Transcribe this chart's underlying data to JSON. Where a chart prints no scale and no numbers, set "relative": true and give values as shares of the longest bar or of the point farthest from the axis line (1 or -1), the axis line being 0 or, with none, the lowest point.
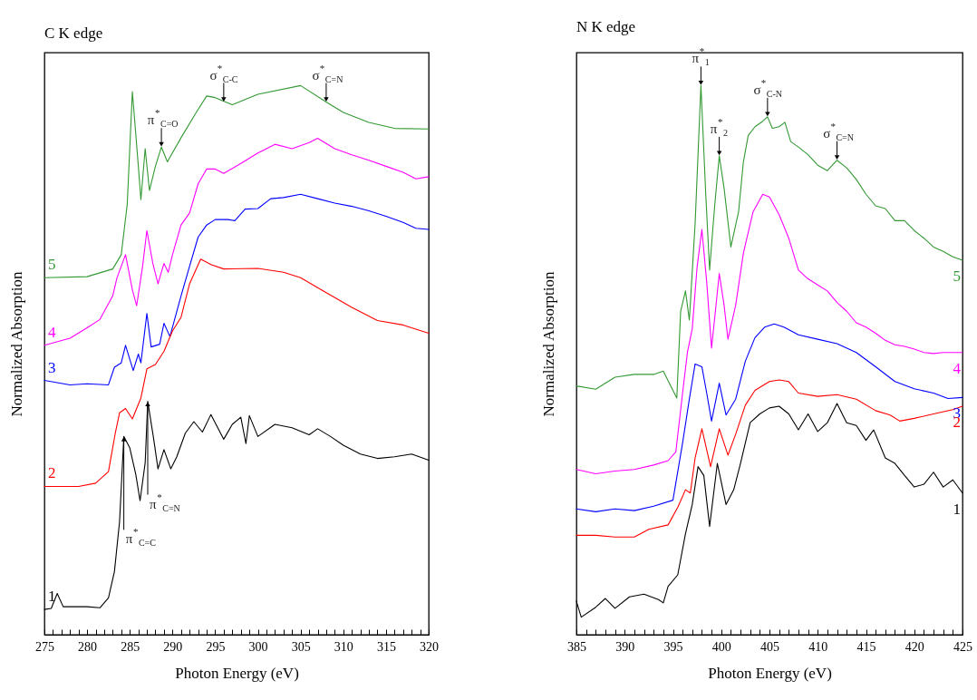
{
  "chart_data": [
    {
      "type": "line",
      "title": "C K edge",
      "xlabel": "Photon Energy (eV)",
      "ylabel": "Normalized Absorption",
      "relative": true,
      "xlim": [
        275,
        320
      ],
      "xticks": [
        275,
        {
          "value": 276,
          "label": null
        },
        {
          "value": 277,
          "label": null
        },
        {
          "value": 278,
          "label": null
        },
        {
          "value": 279,
          "label": null
        },
        280,
        {
          "value": 281,
          "label": null
        },
        {
          "value": 282,
          "label": null
        },
        {
          "value": 283,
          "label": null
        },
        {
          "value": 284,
          "label": null
        },
        285,
        {
          "value": 286,
          "label": null
        },
        {
          "value": 287,
          "label": null
        },
        {
          "value": 288,
          "label": null
        },
        {
          "value": 289,
          "label": null
        },
        290,
        {
          "value": 291,
          "label": null
        },
        {
          "value": 292,
          "label": null
        },
        {
          "value": 293,
          "label": null
        },
        {
          "value": 294,
          "label": null
        },
        295,
        {
          "value": 296,
          "label": null
        },
        {
          "value": 297,
          "label": null
        },
        {
          "value": 298,
          "label": null
        },
        {
          "value": 299,
          "label": null
        },
        300,
        {
          "value": 301,
          "label": null
        },
        {
          "value": 302,
          "label": null
        },
        {
          "value": 303,
          "label": null
        },
        {
          "value": 304,
          "label": null
        },
        305,
        {
          "value": 306,
          "label": null
        },
        {
          "value": 307,
          "label": null
        },
        {
          "value": 308,
          "label": null
        },
        {
          "value": 309,
          "label": null
        },
        310,
        {
          "value": 311,
          "label": null
        },
        {
          "value": 312,
          "label": null
        },
        {
          "value": 313,
          "label": null
        },
        {
          "value": 314,
          "label": null
        },
        315,
        {
          "value": 316,
          "label": null
        },
        {
          "value": 317,
          "label": null
        },
        {
          "value": 318,
          "label": null
        },
        {
          "value": 319,
          "label": null
        },
        320
      ],
      "series": [
        {
          "name": "5",
          "color": "#339933",
          "x": [
            275,
            280,
            283,
            284,
            284.7,
            285.3,
            286,
            286.3,
            286.8,
            287.3,
            288,
            288.7,
            289.4,
            291,
            292.7,
            294,
            295,
            297,
            300,
            305,
            308,
            310,
            313,
            316,
            320
          ],
          "values": [
            0.65,
            0.652,
            0.666,
            0.692,
            0.784,
            0.989,
            0.853,
            0.792,
            0.885,
            0.809,
            0.853,
            0.888,
            0.861,
            0.905,
            0.949,
            0.981,
            0.978,
            0.965,
            0.984,
            1.0,
            0.97,
            0.951,
            0.933,
            0.922,
            0.921
          ]
        },
        {
          "name": "4",
          "color": "#ff00ff",
          "x": [
            275,
            278,
            280,
            281.5,
            283,
            283.5,
            284.5,
            285.3,
            285.8,
            286.5,
            287,
            287.7,
            288.3,
            289,
            289.5,
            290,
            291,
            292,
            293,
            294,
            295,
            296,
            298,
            300,
            302,
            304,
            306,
            307,
            309,
            311,
            313,
            315,
            317,
            318.5,
            320
          ],
          "values": [
            0.527,
            0.54,
            0.559,
            0.574,
            0.617,
            0.65,
            0.692,
            0.628,
            0.599,
            0.671,
            0.736,
            0.676,
            0.639,
            0.676,
            0.66,
            0.692,
            0.746,
            0.768,
            0.821,
            0.848,
            0.848,
            0.84,
            0.858,
            0.877,
            0.893,
            0.885,
            0.896,
            0.904,
            0.885,
            0.874,
            0.864,
            0.853,
            0.842,
            0.83,
            0.834
          ]
        },
        {
          "name": "3",
          "color": "#0000ff",
          "x": [
            275,
            278,
            280,
            282.5,
            283.2,
            284,
            284.5,
            285.4,
            286,
            286.3,
            287,
            287.5,
            288.5,
            289,
            289.7,
            291,
            292,
            293,
            294,
            295,
            296.5,
            297.3,
            298.5,
            300,
            301.5,
            303,
            305,
            307,
            309,
            311,
            313,
            315,
            317,
            318.5,
            320
          ],
          "values": [
            0.463,
            0.455,
            0.457,
            0.455,
            0.487,
            0.495,
            0.527,
            0.481,
            0.511,
            0.495,
            0.585,
            0.524,
            0.529,
            0.567,
            0.543,
            0.617,
            0.671,
            0.724,
            0.746,
            0.756,
            0.756,
            0.754,
            0.775,
            0.776,
            0.794,
            0.796,
            0.802,
            0.794,
            0.786,
            0.78,
            0.772,
            0.762,
            0.751,
            0.74,
            0.738
          ]
        },
        {
          "name": "2",
          "color": "#ff0000",
          "x": [
            275,
            279,
            281,
            282.5,
            283.3,
            283.8,
            284.5,
            285.3,
            286.3,
            287,
            288,
            289,
            290,
            291,
            292,
            293.3,
            294.5,
            296,
            300,
            303,
            305,
            308,
            311,
            314,
            317,
            320
          ],
          "values": [
            0.27,
            0.27,
            0.276,
            0.297,
            0.367,
            0.404,
            0.412,
            0.393,
            0.431,
            0.484,
            0.492,
            0.516,
            0.553,
            0.578,
            0.639,
            0.684,
            0.674,
            0.666,
            0.667,
            0.66,
            0.65,
            0.623,
            0.596,
            0.572,
            0.564,
            0.549
          ]
        },
        {
          "name": "1",
          "color": "#000000",
          "x": [
            275,
            275.8,
            276.5,
            277.2,
            280,
            281.5,
            282.5,
            283.2,
            283.8,
            284.3,
            285,
            285.7,
            286.2,
            286.8,
            287.1,
            287.8,
            288.3,
            289,
            289.8,
            290.5,
            291.5,
            292.5,
            293.5,
            294.5,
            296,
            297,
            298,
            298.6,
            299,
            300,
            302,
            304,
            306,
            307,
            308.5,
            310,
            312,
            314,
            316,
            318,
            320
          ],
          "values": [
            0.046,
            0.048,
            0.075,
            0.051,
            0.051,
            0.049,
            0.067,
            0.115,
            0.206,
            0.361,
            0.34,
            0.292,
            0.244,
            0.313,
            0.425,
            0.356,
            0.302,
            0.337,
            0.302,
            0.324,
            0.367,
            0.388,
            0.369,
            0.401,
            0.356,
            0.383,
            0.396,
            0.348,
            0.399,
            0.361,
            0.383,
            0.377,
            0.364,
            0.375,
            0.361,
            0.345,
            0.329,
            0.321,
            0.324,
            0.329,
            0.318
          ]
        }
      ],
      "annotations": [
        {
          "text": "π$^{*}$$_{C=O}$",
          "x": 288.7,
          "y": 0.888
        },
        {
          "text": "σ$^{*}$$_{C-C}$",
          "x": 296,
          "y": 0.97
        },
        {
          "text": "σ$^{*}$$_{C=N}$",
          "x": 308,
          "y": 0.97
        },
        {
          "text": "π$^{*}$$_{C=N}$",
          "x": 287.1,
          "y": 0.425
        },
        {
          "text": "π$^{*}$$_{C=C}$",
          "x": 284.3,
          "y": 0.361
        }
      ]
    },
    {
      "type": "line",
      "title": "N K edge",
      "xlabel": "Photon Energy (eV)",
      "ylabel": "Normalized Absorption",
      "relative": true,
      "xlim": [
        385,
        425
      ],
      "xticks": [
        385,
        {
          "value": 386,
          "label": null
        },
        {
          "value": 387,
          "label": null
        },
        {
          "value": 388,
          "label": null
        },
        {
          "value": 389,
          "label": null
        },
        390,
        {
          "value": 391,
          "label": null
        },
        {
          "value": 392,
          "label": null
        },
        {
          "value": 393,
          "label": null
        },
        {
          "value": 394,
          "label": null
        },
        395,
        {
          "value": 396,
          "label": null
        },
        {
          "value": 397,
          "label": null
        },
        {
          "value": 398,
          "label": null
        },
        {
          "value": 399,
          "label": null
        },
        400,
        {
          "value": 401,
          "label": null
        },
        {
          "value": 402,
          "label": null
        },
        {
          "value": 403,
          "label": null
        },
        {
          "value": 404,
          "label": null
        },
        405,
        {
          "value": 406,
          "label": null
        },
        {
          "value": 407,
          "label": null
        },
        {
          "value": 408,
          "label": null
        },
        {
          "value": 409,
          "label": null
        },
        410,
        {
          "value": 411,
          "label": null
        },
        {
          "value": 412,
          "label": null
        },
        {
          "value": 413,
          "label": null
        },
        {
          "value": 414,
          "label": null
        },
        415,
        {
          "value": 416,
          "label": null
        },
        {
          "value": 417,
          "label": null
        },
        {
          "value": 418,
          "label": null
        },
        {
          "value": 419,
          "label": null
        },
        420,
        {
          "value": 421,
          "label": null
        },
        {
          "value": 422,
          "label": null
        },
        {
          "value": 423,
          "label": null
        },
        {
          "value": 424,
          "label": null
        },
        425
      ],
      "series": [
        {
          "name": "5",
          "color": "#339933",
          "x": [
            385,
            387,
            389,
            391,
            393,
            394,
            395,
            395.4,
            395.8,
            396.3,
            396.7,
            397.3,
            397.9,
            398.4,
            398.8,
            399.3,
            399.8,
            400.3,
            401,
            401.8,
            402.3,
            402.8,
            403.5,
            404.3,
            404.8,
            405.3,
            406,
            406.6,
            407.2,
            408,
            409,
            410,
            411,
            412,
            413,
            414,
            415,
            416,
            417,
            418,
            419,
            420,
            421,
            422,
            423,
            424,
            425
          ],
          "values": [
            0.453,
            0.447,
            0.469,
            0.474,
            0.474,
            0.48,
            0.445,
            0.431,
            0.589,
            0.626,
            0.573,
            0.749,
            1.0,
            0.802,
            0.664,
            0.776,
            0.872,
            0.813,
            0.706,
            0.77,
            0.861,
            0.909,
            0.925,
            0.935,
            0.943,
            0.922,
            0.925,
            0.933,
            0.898,
            0.888,
            0.874,
            0.855,
            0.845,
            0.864,
            0.85,
            0.829,
            0.802,
            0.781,
            0.776,
            0.754,
            0.754,
            0.736,
            0.722,
            0.706,
            0.698,
            0.688,
            0.682
          ]
        },
        {
          "name": "4",
          "color": "#ff00ff",
          "x": [
            385,
            387,
            389,
            391,
            393,
            394.5,
            395.3,
            396,
            396.5,
            397,
            397.5,
            398,
            398.5,
            399,
            399.4,
            399.8,
            400.3,
            400.7,
            401.5,
            402.3,
            403.3,
            404.3,
            405,
            406,
            407,
            408,
            409,
            410,
            411,
            412,
            413,
            414,
            415,
            416,
            417,
            418,
            419,
            420,
            421,
            422,
            423,
            425
          ],
          "values": [
            0.301,
            0.293,
            0.298,
            0.301,
            0.309,
            0.317,
            0.333,
            0.44,
            0.514,
            0.557,
            0.669,
            0.738,
            0.642,
            0.522,
            0.589,
            0.658,
            0.6,
            0.538,
            0.6,
            0.695,
            0.77,
            0.802,
            0.797,
            0.765,
            0.722,
            0.664,
            0.648,
            0.637,
            0.626,
            0.605,
            0.589,
            0.568,
            0.56,
            0.549,
            0.536,
            0.528,
            0.525,
            0.52,
            0.514,
            0.512,
            0.514,
            0.514
          ]
        },
        {
          "name": "3",
          "color": "#0000ff",
          "x": [
            385,
            387,
            389,
            391,
            393,
            395,
            396,
            396.7,
            397.3,
            398,
            398.5,
            399,
            399.8,
            400.5,
            401.5,
            402.5,
            403.5,
            404.5,
            405.5,
            406.5,
            408,
            410,
            412,
            414,
            416,
            418,
            420,
            422,
            423.5,
            425
          ],
          "values": [
            0.229,
            0.224,
            0.229,
            0.226,
            0.234,
            0.245,
            0.349,
            0.429,
            0.493,
            0.488,
            0.44,
            0.389,
            0.458,
            0.4,
            0.429,
            0.498,
            0.541,
            0.56,
            0.566,
            0.56,
            0.546,
            0.538,
            0.53,
            0.514,
            0.488,
            0.461,
            0.448,
            0.44,
            0.43,
            0.432
          ]
        },
        {
          "name": "2",
          "color": "#ff0000",
          "x": [
            385,
            387,
            389,
            391,
            392.5,
            394.5,
            395.5,
            396.3,
            396.8,
            397.3,
            398,
            398.9,
            399.8,
            400.7,
            401.5,
            402.5,
            403.5,
            405,
            406,
            407,
            408,
            410,
            412,
            414,
            416,
            417.5,
            418.5,
            420,
            422,
            424,
            425
          ],
          "values": [
            0.181,
            0.181,
            0.178,
            0.178,
            0.192,
            0.2,
            0.232,
            0.264,
            0.258,
            0.322,
            0.375,
            0.306,
            0.375,
            0.327,
            0.365,
            0.418,
            0.445,
            0.461,
            0.464,
            0.461,
            0.44,
            0.434,
            0.437,
            0.429,
            0.408,
            0.4,
            0.389,
            0.394,
            0.402,
            0.41,
            0.416
          ]
        },
        {
          "name": "1",
          "color": "#000000",
          "x": [
            385,
            385.5,
            387,
            388,
            389,
            390.5,
            392,
            393.5,
            394,
            394.5,
            395.5,
            396.3,
            397,
            397.6,
            398.2,
            398.8,
            399.6,
            400.5,
            401.3,
            402,
            403,
            404,
            405,
            406,
            407,
            408,
            409,
            410,
            411,
            412,
            413,
            414,
            415,
            415.8,
            417,
            418,
            419,
            420,
            421,
            422,
            423,
            424,
            425
          ],
          "values": [
            0.061,
            0.032,
            0.05,
            0.066,
            0.048,
            0.069,
            0.074,
            0.064,
            0.058,
            0.088,
            0.109,
            0.184,
            0.237,
            0.306,
            0.29,
            0.197,
            0.312,
            0.237,
            0.264,
            0.312,
            0.386,
            0.402,
            0.413,
            0.416,
            0.402,
            0.373,
            0.402,
            0.37,
            0.386,
            0.421,
            0.386,
            0.381,
            0.354,
            0.373,
            0.322,
            0.312,
            0.29,
            0.269,
            0.274,
            0.296,
            0.269,
            0.282,
            0.258
          ]
        }
      ],
      "annotations": [
        {
          "text": "π$^{*}$$_{1}$",
          "x": 397.9,
          "y": 1.0
        },
        {
          "text": "π$^{*}$$_{2}$",
          "x": 399.8,
          "y": 0.872
        },
        {
          "text": "σ$^{*}$$_{C-N}$",
          "x": 404.8,
          "y": 0.943
        },
        {
          "text": "σ$^{*}$$_{C=N}$",
          "x": 412,
          "y": 0.864
        }
      ]
    }
  ]
}
